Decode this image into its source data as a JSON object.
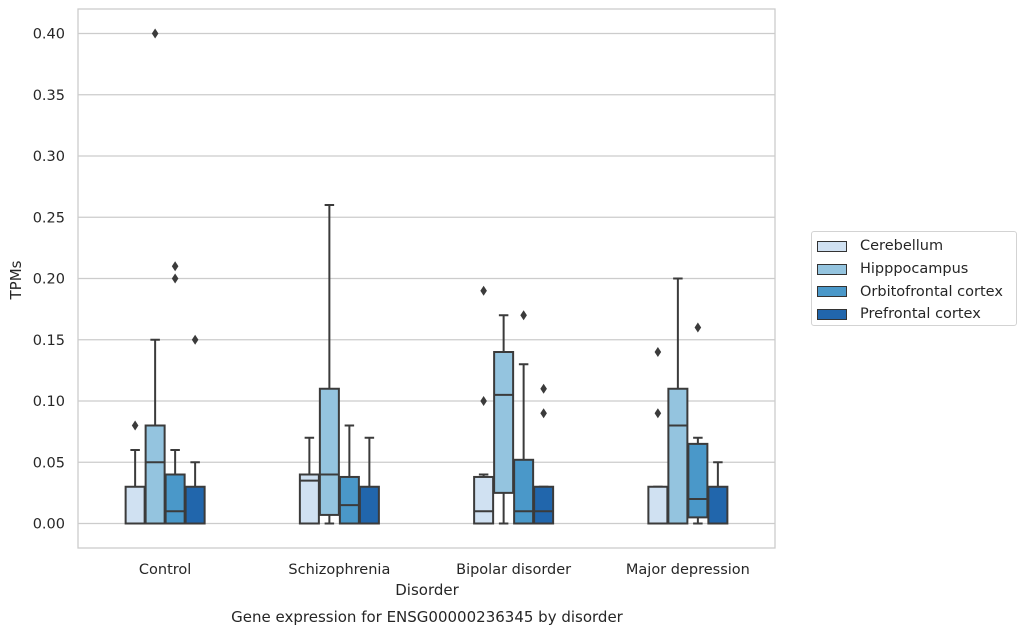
{
  "chart_data": {
    "type": "boxplot",
    "title": "",
    "caption": "Gene expression for ENSG00000236345 by disorder",
    "xlabel": "Disorder",
    "ylabel": "TPMs",
    "ylim": [
      -0.02,
      0.42
    ],
    "yticks": [
      "0.00",
      "0.05",
      "0.10",
      "0.15",
      "0.20",
      "0.25",
      "0.30",
      "0.35",
      "0.40"
    ],
    "grid": "horizontal",
    "legend_position": "right",
    "categories": [
      "Control",
      "Schizophrenia",
      "Bipolar disorder",
      "Major depression"
    ],
    "series": [
      {
        "name": "Cerebellum",
        "color": "#d0e1f2",
        "boxes": [
          {
            "q1": 0.0,
            "median": 0.0,
            "q3": 0.03,
            "whisker_low": 0.0,
            "whisker_high": 0.06,
            "outliers": [
              0.08
            ]
          },
          {
            "q1": 0.0,
            "median": 0.035,
            "q3": 0.04,
            "whisker_low": 0.0,
            "whisker_high": 0.07,
            "outliers": []
          },
          {
            "q1": 0.0,
            "median": 0.01,
            "q3": 0.038,
            "whisker_low": 0.0,
            "whisker_high": 0.04,
            "outliers": [
              0.1,
              0.19
            ]
          },
          {
            "q1": 0.0,
            "median": 0.0,
            "q3": 0.03,
            "whisker_low": 0.0,
            "whisker_high": 0.03,
            "outliers": [
              0.09,
              0.14
            ]
          }
        ]
      },
      {
        "name": "Hipppocampus",
        "color": "#94c4df",
        "boxes": [
          {
            "q1": 0.0,
            "median": 0.05,
            "q3": 0.08,
            "whisker_low": 0.0,
            "whisker_high": 0.15,
            "outliers": [
              0.4
            ]
          },
          {
            "q1": 0.007,
            "median": 0.04,
            "q3": 0.11,
            "whisker_low": 0.0,
            "whisker_high": 0.26,
            "outliers": []
          },
          {
            "q1": 0.025,
            "median": 0.105,
            "q3": 0.14,
            "whisker_low": 0.0,
            "whisker_high": 0.17,
            "outliers": []
          },
          {
            "q1": 0.0,
            "median": 0.08,
            "q3": 0.11,
            "whisker_low": 0.0,
            "whisker_high": 0.2,
            "outliers": []
          }
        ]
      },
      {
        "name": "Orbitofrontal cortex",
        "color": "#4a98c9",
        "boxes": [
          {
            "q1": 0.0,
            "median": 0.01,
            "q3": 0.04,
            "whisker_low": 0.0,
            "whisker_high": 0.06,
            "outliers": [
              0.2,
              0.21
            ]
          },
          {
            "q1": 0.0,
            "median": 0.015,
            "q3": 0.038,
            "whisker_low": 0.0,
            "whisker_high": 0.08,
            "outliers": []
          },
          {
            "q1": 0.0,
            "median": 0.01,
            "q3": 0.052,
            "whisker_low": 0.0,
            "whisker_high": 0.13,
            "outliers": [
              0.17
            ]
          },
          {
            "q1": 0.005,
            "median": 0.02,
            "q3": 0.065,
            "whisker_low": 0.0,
            "whisker_high": 0.07,
            "outliers": [
              0.16
            ]
          }
        ]
      },
      {
        "name": "Prefrontal cortex",
        "color": "#2166ac",
        "boxes": [
          {
            "q1": 0.0,
            "median": 0.0,
            "q3": 0.03,
            "whisker_low": 0.0,
            "whisker_high": 0.05,
            "outliers": [
              0.15
            ]
          },
          {
            "q1": 0.0,
            "median": 0.0,
            "q3": 0.03,
            "whisker_low": 0.0,
            "whisker_high": 0.07,
            "outliers": []
          },
          {
            "q1": 0.0,
            "median": 0.01,
            "q3": 0.03,
            "whisker_low": 0.0,
            "whisker_high": 0.03,
            "outliers": [
              0.09,
              0.11
            ]
          },
          {
            "q1": 0.0,
            "median": 0.0,
            "q3": 0.03,
            "whisker_low": 0.0,
            "whisker_high": 0.05,
            "outliers": []
          }
        ]
      }
    ]
  }
}
